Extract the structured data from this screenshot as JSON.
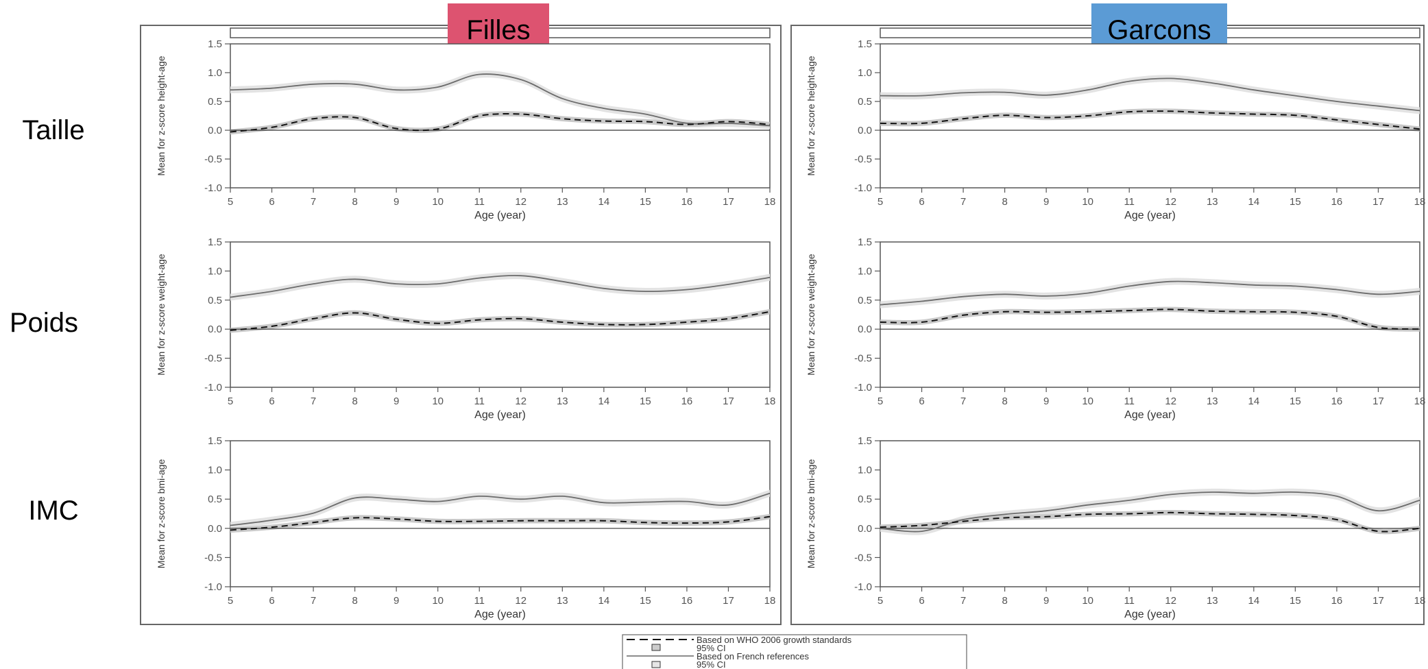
{
  "chart_data": {
    "type": "line",
    "column_headers": [
      {
        "label": "Filles",
        "color": "#dd5370"
      },
      {
        "label": "Garcons",
        "color": "#5b9bd5"
      }
    ],
    "row_labels": [
      "Taille",
      "Poids",
      "IMC"
    ],
    "x": [
      5,
      6,
      7,
      8,
      9,
      10,
      11,
      12,
      13,
      14,
      15,
      16,
      17,
      18
    ],
    "x_ticks": [
      "5",
      "6",
      "7",
      "8",
      "9",
      "10",
      "11",
      "12",
      "13",
      "14",
      "15",
      "16",
      "17",
      "18"
    ],
    "y_ticks": [
      "1.5",
      "1.0",
      "0.5",
      "0.0",
      "-0.5",
      "-1.0"
    ],
    "xlim": [
      5,
      18
    ],
    "ylim": [
      -1.0,
      1.5
    ],
    "xlabel": "Age (year)",
    "ylabels": [
      "Mean for z-score height-age",
      "Mean for z-score weight-age",
      "Mean for z-score bmi-age"
    ],
    "legend": {
      "position": "bottom-center",
      "entries": [
        "Based on WHO 2006 growth standards",
        "95% CI",
        "Based on French references",
        "95% CI"
      ]
    },
    "panels": [
      {
        "name": "filles-taille",
        "series": [
          {
            "style": "solid",
            "values": [
              0.7,
              0.73,
              0.8,
              0.8,
              0.7,
              0.75,
              0.97,
              0.88,
              0.55,
              0.38,
              0.28,
              0.12,
              0.12,
              0.08
            ]
          },
          {
            "style": "dashed",
            "values": [
              -0.03,
              0.05,
              0.2,
              0.22,
              0.03,
              0.02,
              0.25,
              0.28,
              0.2,
              0.16,
              0.15,
              0.1,
              0.15,
              0.1
            ]
          }
        ]
      },
      {
        "name": "garcons-taille",
        "series": [
          {
            "style": "solid",
            "values": [
              0.6,
              0.6,
              0.65,
              0.66,
              0.61,
              0.7,
              0.85,
              0.9,
              0.82,
              0.7,
              0.6,
              0.5,
              0.42,
              0.34
            ]
          },
          {
            "style": "dashed",
            "values": [
              0.12,
              0.12,
              0.2,
              0.26,
              0.22,
              0.25,
              0.32,
              0.33,
              0.3,
              0.28,
              0.26,
              0.18,
              0.1,
              0.02
            ]
          }
        ]
      },
      {
        "name": "filles-poids",
        "series": [
          {
            "style": "solid",
            "values": [
              0.55,
              0.65,
              0.78,
              0.86,
              0.78,
              0.78,
              0.88,
              0.92,
              0.82,
              0.7,
              0.65,
              0.68,
              0.77,
              0.89
            ]
          },
          {
            "style": "dashed",
            "values": [
              -0.02,
              0.05,
              0.18,
              0.28,
              0.17,
              0.1,
              0.16,
              0.18,
              0.12,
              0.08,
              0.08,
              0.12,
              0.18,
              0.3
            ]
          }
        ]
      },
      {
        "name": "garcons-poids",
        "series": [
          {
            "style": "solid",
            "values": [
              0.42,
              0.48,
              0.56,
              0.6,
              0.57,
              0.62,
              0.74,
              0.82,
              0.8,
              0.76,
              0.74,
              0.68,
              0.6,
              0.65
            ]
          },
          {
            "style": "dashed",
            "values": [
              0.12,
              0.12,
              0.24,
              0.3,
              0.29,
              0.3,
              0.32,
              0.34,
              0.31,
              0.3,
              0.29,
              0.22,
              0.03,
              0.0
            ]
          }
        ]
      },
      {
        "name": "filles-imc",
        "series": [
          {
            "style": "solid",
            "values": [
              0.05,
              0.14,
              0.26,
              0.52,
              0.5,
              0.46,
              0.55,
              0.5,
              0.55,
              0.44,
              0.45,
              0.46,
              0.4,
              0.6
            ]
          },
          {
            "style": "dashed",
            "values": [
              -0.03,
              0.02,
              0.1,
              0.18,
              0.16,
              0.12,
              0.12,
              0.13,
              0.13,
              0.13,
              0.1,
              0.09,
              0.11,
              0.2
            ]
          }
        ]
      },
      {
        "name": "garcons-imc",
        "series": [
          {
            "style": "solid",
            "values": [
              0.0,
              -0.05,
              0.15,
              0.24,
              0.3,
              0.4,
              0.48,
              0.58,
              0.62,
              0.6,
              0.62,
              0.55,
              0.3,
              0.48
            ]
          },
          {
            "style": "dashed",
            "values": [
              0.02,
              0.05,
              0.12,
              0.18,
              0.2,
              0.24,
              0.25,
              0.27,
              0.25,
              0.24,
              0.22,
              0.15,
              -0.05,
              0.0
            ]
          }
        ]
      }
    ]
  }
}
